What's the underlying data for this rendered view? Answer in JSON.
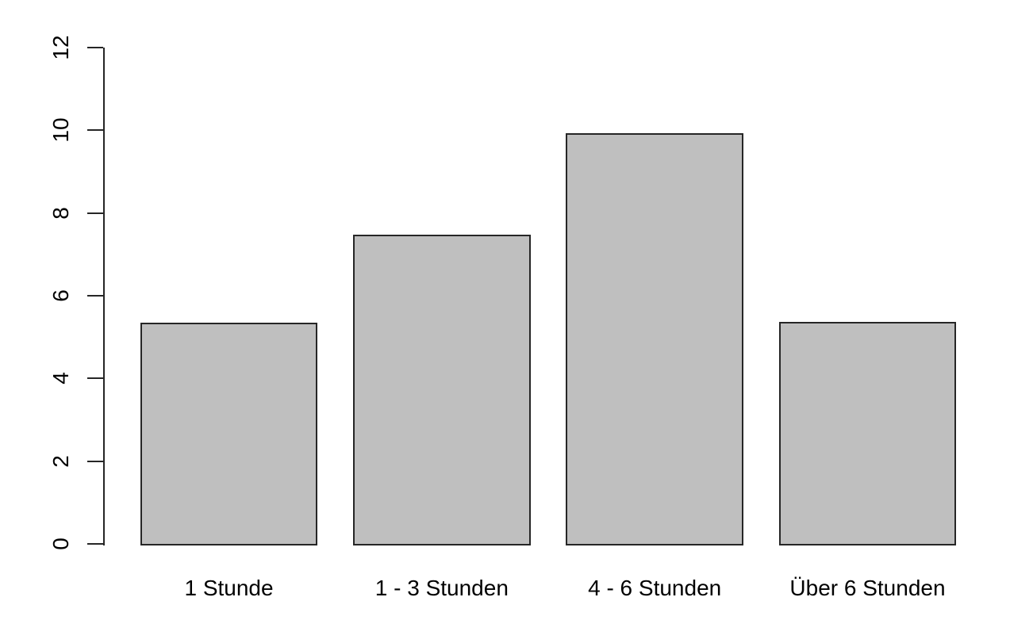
{
  "chart_data": {
    "type": "bar",
    "categories": [
      "1 Stunde",
      "1 - 3 Stunden",
      "4 - 6 Stunden",
      "Über 6 Stunden"
    ],
    "values": [
      5.35,
      7.48,
      9.93,
      5.37
    ],
    "title": "",
    "xlabel": "",
    "ylabel": "",
    "ylim": [
      0,
      12
    ],
    "yticks": [
      0,
      2,
      4,
      6,
      8,
      10,
      12
    ],
    "grid": false,
    "legend": null,
    "bar_fill": "#bfbfbf",
    "bar_border": "#262626",
    "axis_color": "#262626",
    "text_color": "#000000",
    "background": "#ffffff"
  }
}
